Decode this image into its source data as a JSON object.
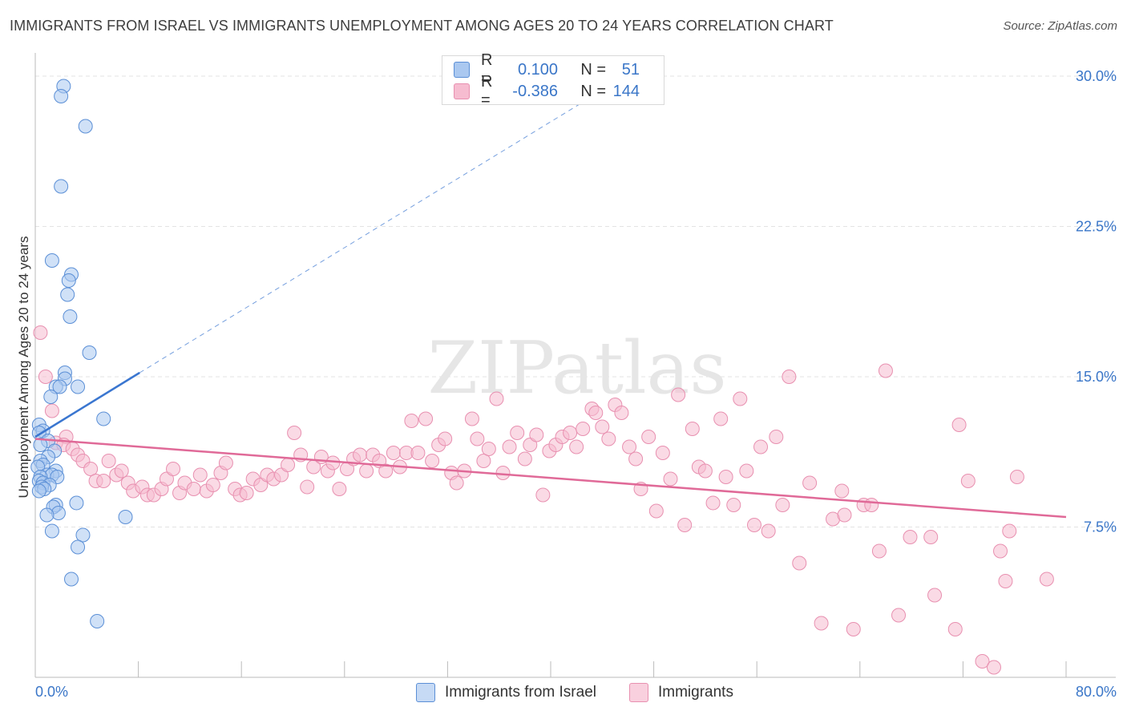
{
  "title": "IMMIGRANTS FROM ISRAEL VS IMMIGRANTS UNEMPLOYMENT AMONG AGES 20 TO 24 YEARS CORRELATION CHART",
  "source": "Source: ZipAtlas.com",
  "watermark": "ZIPatlas",
  "legend": {
    "rows": [
      {
        "r_label": "R =",
        "r_value": "0.100",
        "n_label": "N =",
        "n_value": "51"
      },
      {
        "r_label": "R =",
        "r_value": "-0.386",
        "n_label": "N =",
        "n_value": "144"
      }
    ]
  },
  "bottom_legend": [
    "Immigrants from Israel",
    "Immigrants"
  ],
  "colors": {
    "israel_fill": "#aac8f0",
    "israel_stroke": "#5b8fd6",
    "israel_line": "#3a76d0",
    "imm_fill": "#f6bcd0",
    "imm_stroke": "#e890b0",
    "imm_line": "#e06a98",
    "tick_label": "#3a76c8",
    "grid": "#e3e3e3"
  },
  "chart_data": {
    "type": "scatter",
    "title": "IMMIGRANTS FROM ISRAEL VS IMMIGRANTS UNEMPLOYMENT AMONG AGES 20 TO 24 YEARS CORRELATION CHART",
    "xlabel": "",
    "ylabel": "Unemployment Among Ages 20 to 24 years",
    "xlim": [
      0,
      80
    ],
    "ylim": [
      0,
      31
    ],
    "x_tick_labels": [
      "0.0%",
      "80.0%"
    ],
    "y_ticks": [
      7.5,
      15.0,
      22.5,
      30.0
    ],
    "y_tick_labels": [
      "7.5%",
      "15.0%",
      "22.5%",
      "30.0%"
    ],
    "grid": true,
    "legend_position": "top-center",
    "series": [
      {
        "name": "Immigrants from Israel",
        "trend": {
          "x0": 0,
          "y0": 12.0,
          "x1": 8.1,
          "y1": 15.2,
          "dashed_to_x": 43.0,
          "dashed_to_y": 28.9
        },
        "points": [
          [
            2.2,
            29.5
          ],
          [
            2.0,
            29.0
          ],
          [
            3.9,
            27.5
          ],
          [
            2.0,
            24.5
          ],
          [
            1.3,
            20.8
          ],
          [
            2.8,
            20.1
          ],
          [
            2.6,
            19.8
          ],
          [
            2.5,
            19.1
          ],
          [
            2.7,
            18.0
          ],
          [
            4.2,
            16.2
          ],
          [
            2.3,
            15.2
          ],
          [
            2.3,
            14.9
          ],
          [
            1.6,
            14.5
          ],
          [
            3.3,
            14.5
          ],
          [
            1.9,
            14.5
          ],
          [
            1.2,
            14.0
          ],
          [
            5.3,
            12.9
          ],
          [
            0.3,
            12.6
          ],
          [
            0.6,
            12.3
          ],
          [
            0.3,
            12.2
          ],
          [
            1.0,
            11.8
          ],
          [
            0.4,
            11.6
          ],
          [
            1.5,
            11.3
          ],
          [
            1.0,
            11.0
          ],
          [
            0.4,
            10.8
          ],
          [
            0.6,
            10.6
          ],
          [
            0.2,
            10.5
          ],
          [
            1.6,
            10.3
          ],
          [
            0.9,
            10.1
          ],
          [
            1.3,
            10.1
          ],
          [
            1.7,
            10.0
          ],
          [
            0.4,
            10.0
          ],
          [
            0.3,
            9.8
          ],
          [
            0.6,
            9.7
          ],
          [
            1.1,
            9.6
          ],
          [
            0.5,
            9.5
          ],
          [
            0.7,
            9.4
          ],
          [
            0.3,
            9.3
          ],
          [
            3.2,
            8.7
          ],
          [
            1.6,
            8.6
          ],
          [
            1.4,
            8.5
          ],
          [
            1.8,
            8.2
          ],
          [
            0.9,
            8.1
          ],
          [
            7.0,
            8.0
          ],
          [
            1.3,
            7.3
          ],
          [
            3.7,
            7.1
          ],
          [
            3.3,
            6.5
          ],
          [
            2.8,
            4.9
          ],
          [
            4.8,
            2.8
          ]
        ]
      },
      {
        "name": "Immigrants",
        "trend": {
          "x0": 0,
          "y0": 11.9,
          "x1": 80,
          "y1": 8.0
        },
        "points": [
          [
            0.4,
            17.2
          ],
          [
            0.8,
            15.0
          ],
          [
            1.3,
            13.3
          ],
          [
            2.4,
            12.0
          ],
          [
            1.6,
            11.7
          ],
          [
            2.2,
            11.6
          ],
          [
            2.9,
            11.4
          ],
          [
            3.3,
            11.1
          ],
          [
            3.7,
            10.8
          ],
          [
            4.3,
            10.4
          ],
          [
            4.7,
            9.8
          ],
          [
            5.3,
            9.8
          ],
          [
            5.7,
            10.8
          ],
          [
            6.3,
            10.1
          ],
          [
            6.7,
            10.3
          ],
          [
            7.2,
            9.7
          ],
          [
            7.6,
            9.3
          ],
          [
            8.3,
            9.5
          ],
          [
            8.7,
            9.1
          ],
          [
            9.2,
            9.1
          ],
          [
            9.8,
            9.4
          ],
          [
            10.2,
            9.9
          ],
          [
            10.7,
            10.4
          ],
          [
            11.2,
            9.2
          ],
          [
            11.6,
            9.7
          ],
          [
            12.3,
            9.4
          ],
          [
            12.8,
            10.1
          ],
          [
            13.3,
            9.3
          ],
          [
            13.8,
            9.6
          ],
          [
            14.4,
            10.2
          ],
          [
            14.8,
            10.7
          ],
          [
            15.5,
            9.4
          ],
          [
            15.9,
            9.1
          ],
          [
            16.4,
            9.2
          ],
          [
            16.9,
            9.9
          ],
          [
            17.5,
            9.6
          ],
          [
            18.0,
            10.1
          ],
          [
            18.5,
            9.9
          ],
          [
            19.1,
            10.1
          ],
          [
            19.6,
            10.6
          ],
          [
            20.1,
            12.2
          ],
          [
            20.6,
            11.1
          ],
          [
            21.1,
            9.5
          ],
          [
            21.6,
            10.5
          ],
          [
            22.2,
            11.0
          ],
          [
            22.7,
            10.3
          ],
          [
            23.1,
            10.7
          ],
          [
            23.6,
            9.4
          ],
          [
            24.2,
            10.4
          ],
          [
            24.7,
            10.9
          ],
          [
            25.2,
            11.1
          ],
          [
            25.7,
            10.3
          ],
          [
            26.2,
            11.1
          ],
          [
            26.7,
            10.8
          ],
          [
            27.2,
            10.3
          ],
          [
            27.8,
            11.2
          ],
          [
            28.3,
            10.5
          ],
          [
            28.8,
            11.2
          ],
          [
            29.2,
            12.8
          ],
          [
            29.7,
            11.2
          ],
          [
            30.3,
            12.9
          ],
          [
            30.8,
            10.8
          ],
          [
            31.3,
            11.6
          ],
          [
            31.8,
            11.9
          ],
          [
            32.3,
            10.2
          ],
          [
            32.7,
            9.7
          ],
          [
            33.3,
            10.3
          ],
          [
            33.9,
            12.9
          ],
          [
            34.3,
            11.9
          ],
          [
            34.8,
            10.8
          ],
          [
            35.2,
            11.4
          ],
          [
            35.8,
            13.9
          ],
          [
            36.3,
            10.2
          ],
          [
            36.8,
            11.5
          ],
          [
            37.4,
            12.2
          ],
          [
            38.0,
            10.9
          ],
          [
            38.4,
            11.6
          ],
          [
            38.9,
            12.1
          ],
          [
            39.4,
            9.1
          ],
          [
            39.9,
            11.3
          ],
          [
            40.4,
            11.6
          ],
          [
            40.9,
            12.0
          ],
          [
            41.5,
            12.2
          ],
          [
            42.0,
            11.5
          ],
          [
            42.5,
            12.4
          ],
          [
            43.2,
            13.4
          ],
          [
            43.5,
            13.2
          ],
          [
            44.0,
            12.5
          ],
          [
            44.5,
            11.9
          ],
          [
            45.0,
            13.6
          ],
          [
            45.5,
            13.2
          ],
          [
            46.1,
            11.5
          ],
          [
            46.6,
            10.9
          ],
          [
            47.0,
            9.4
          ],
          [
            47.6,
            12.0
          ],
          [
            48.2,
            8.3
          ],
          [
            48.7,
            11.2
          ],
          [
            49.3,
            9.9
          ],
          [
            49.9,
            14.1
          ],
          [
            50.4,
            7.6
          ],
          [
            51.0,
            12.4
          ],
          [
            51.5,
            10.5
          ],
          [
            52.0,
            10.3
          ],
          [
            52.6,
            8.7
          ],
          [
            53.2,
            12.9
          ],
          [
            53.6,
            10.0
          ],
          [
            54.2,
            8.6
          ],
          [
            54.7,
            13.9
          ],
          [
            55.2,
            10.3
          ],
          [
            55.8,
            7.6
          ],
          [
            56.3,
            11.5
          ],
          [
            56.9,
            7.3
          ],
          [
            57.5,
            12.0
          ],
          [
            58.0,
            8.6
          ],
          [
            58.5,
            15.0
          ],
          [
            59.3,
            5.7
          ],
          [
            60.1,
            9.7
          ],
          [
            61.0,
            2.7
          ],
          [
            61.9,
            7.9
          ],
          [
            62.6,
            9.3
          ],
          [
            62.8,
            8.1
          ],
          [
            63.5,
            2.4
          ],
          [
            64.3,
            8.6
          ],
          [
            64.9,
            8.6
          ],
          [
            65.5,
            6.3
          ],
          [
            66.0,
            15.3
          ],
          [
            67.0,
            3.1
          ],
          [
            67.9,
            7.0
          ],
          [
            69.5,
            7.0
          ],
          [
            69.8,
            4.1
          ],
          [
            71.4,
            2.4
          ],
          [
            71.7,
            12.6
          ],
          [
            72.4,
            9.8
          ],
          [
            73.5,
            0.8
          ],
          [
            74.4,
            0.5
          ],
          [
            74.9,
            6.3
          ],
          [
            75.3,
            4.8
          ],
          [
            75.6,
            7.3
          ],
          [
            76.2,
            10.0
          ],
          [
            78.5,
            4.9
          ]
        ]
      }
    ]
  }
}
